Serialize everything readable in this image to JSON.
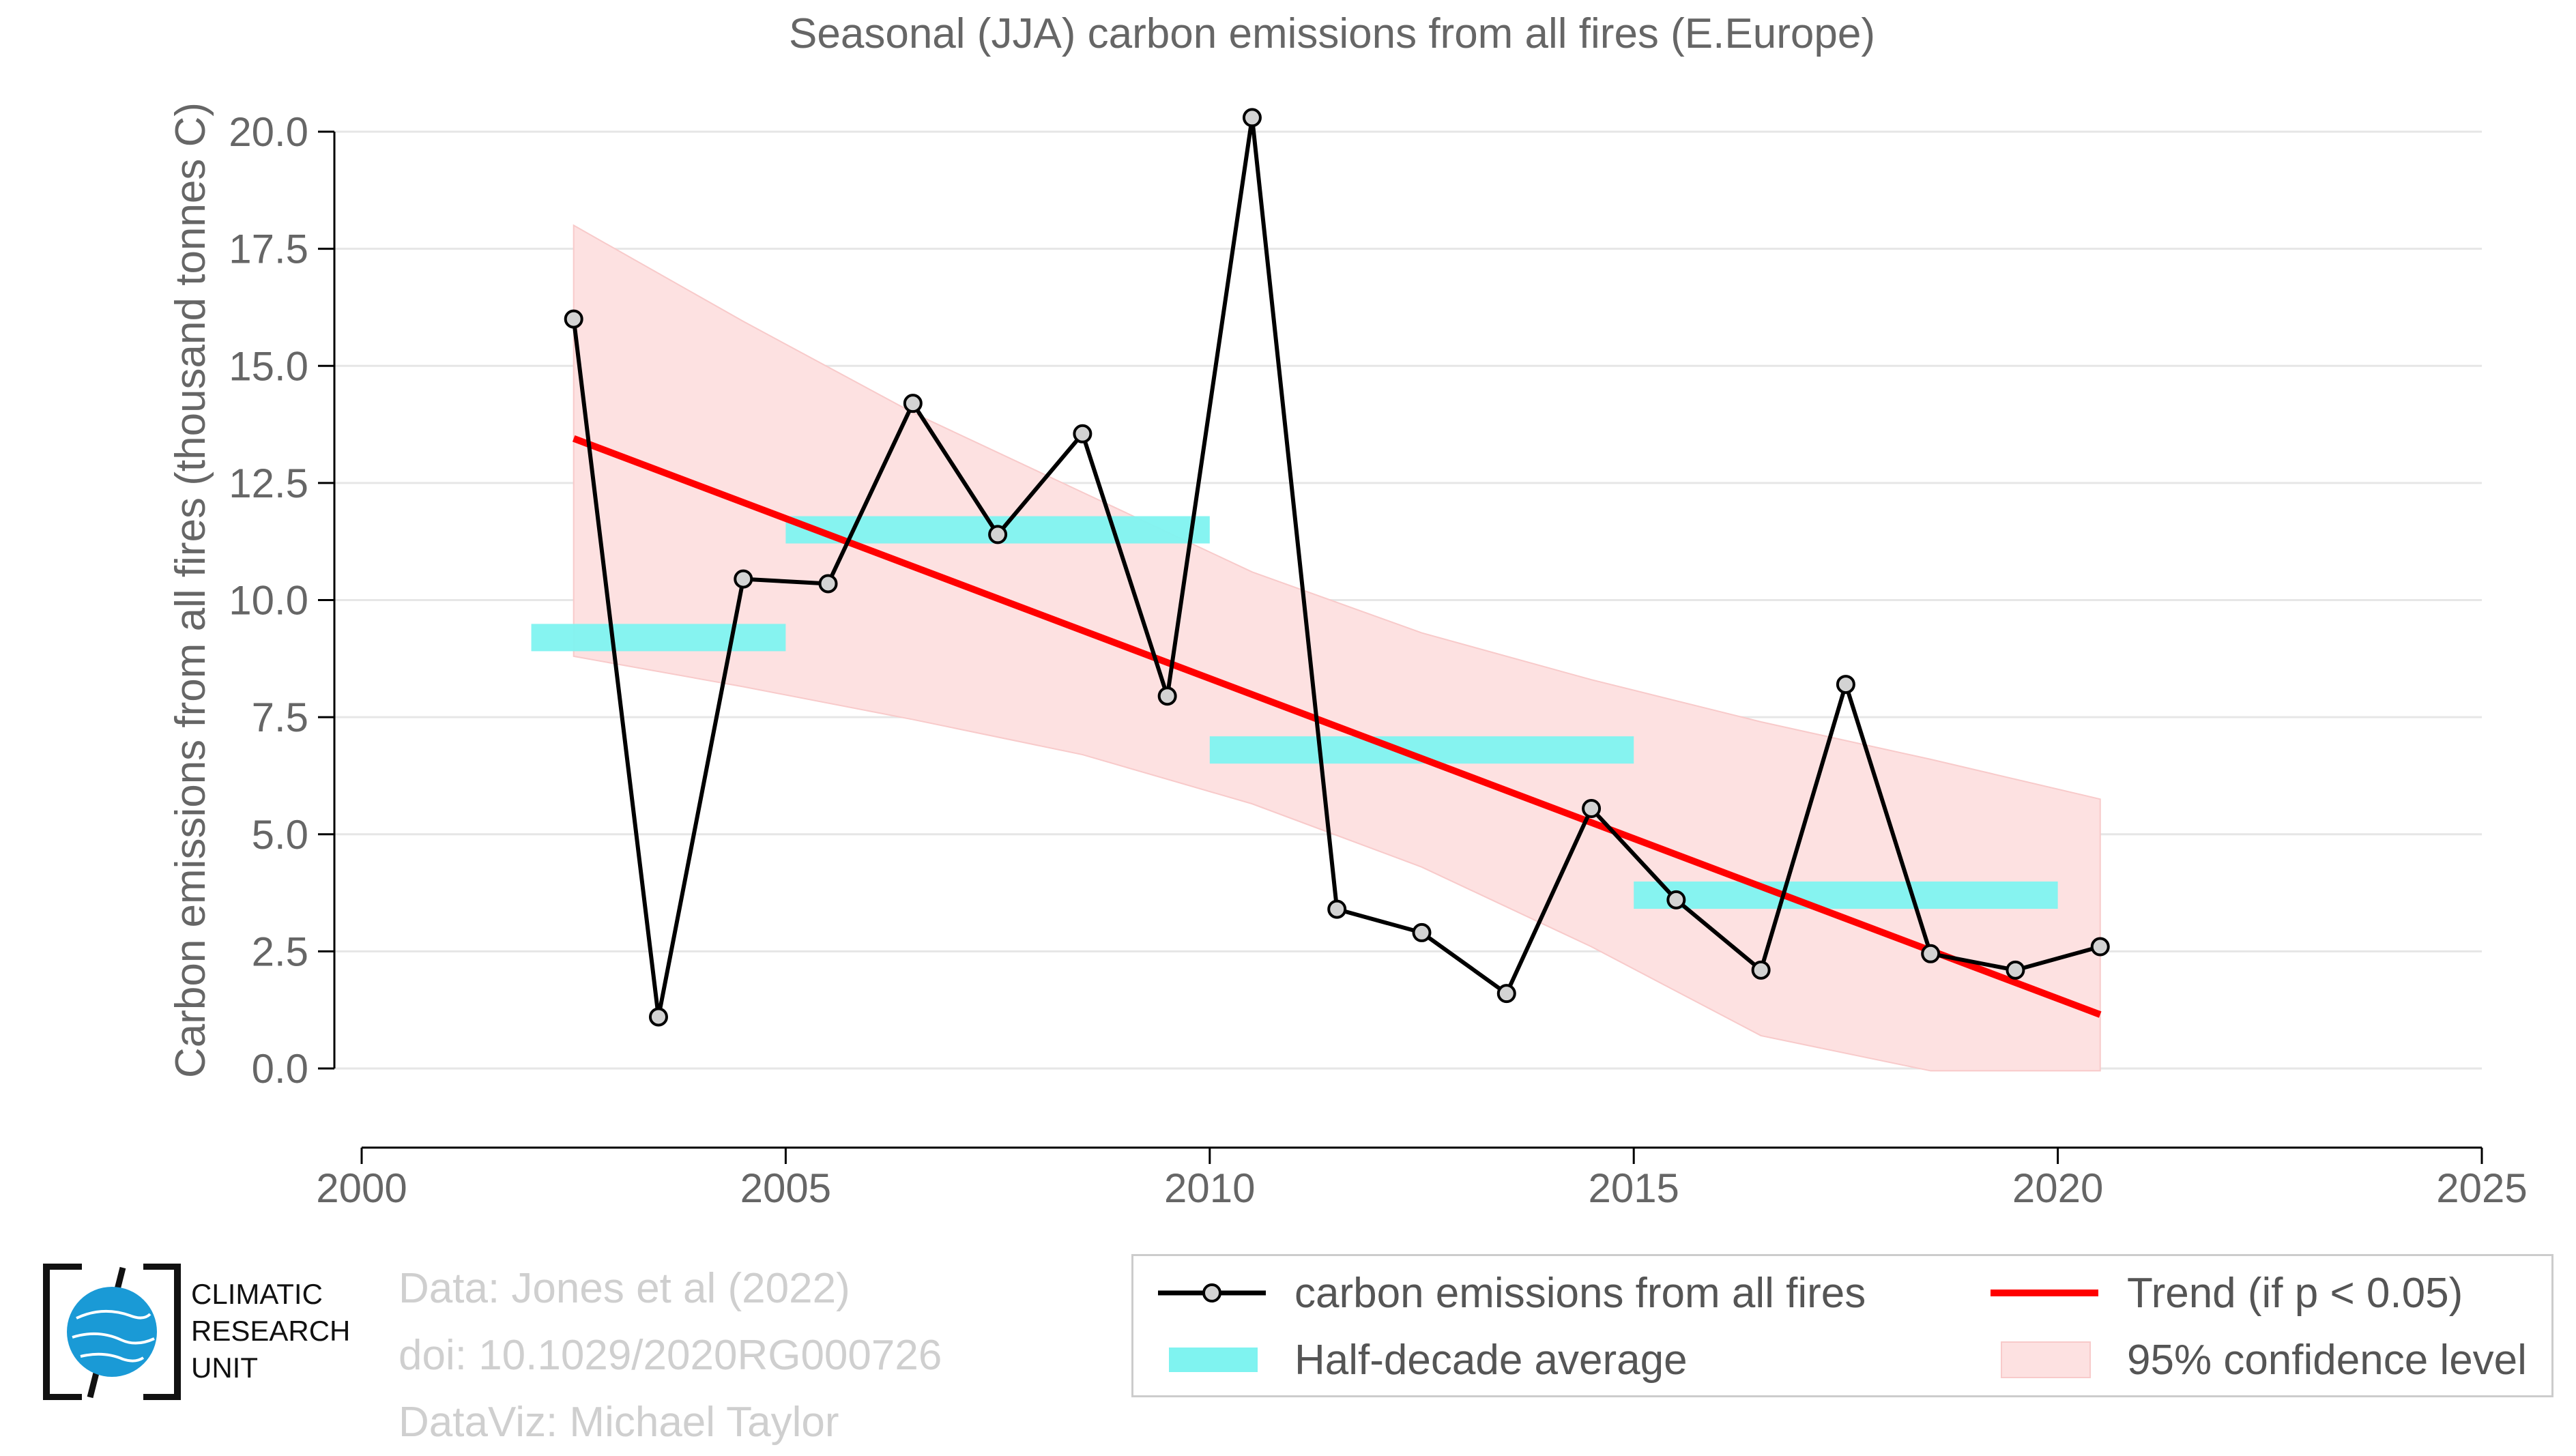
{
  "chart_data": {
    "type": "line",
    "title": "Seasonal (JJA) carbon emissions from all fires (E.Europe)",
    "xlabel": "",
    "ylabel": "Carbon emissions from all fires (thousand tonnes C)",
    "xlim": [
      2000,
      2025
    ],
    "ylim": [
      -1.5,
      21.0
    ],
    "x_ticks": [
      2000,
      2005,
      2010,
      2015,
      2020,
      2025
    ],
    "y_ticks": [
      0.0,
      2.5,
      5.0,
      7.5,
      10.0,
      12.5,
      15.0,
      17.5,
      20.0
    ],
    "grid": "horizontal",
    "series": [
      {
        "name": "carbon emissions from all fires",
        "color": "#000000",
        "x": [
          2002.5,
          2003.5,
          2004.5,
          2005.5,
          2006.5,
          2007.5,
          2008.5,
          2009.5,
          2010.5,
          2011.5,
          2012.5,
          2013.5,
          2014.5,
          2015.5,
          2016.5,
          2017.5,
          2018.5,
          2019.5,
          2020.5
        ],
        "values": [
          16.0,
          1.1,
          10.45,
          10.35,
          14.2,
          11.4,
          13.55,
          7.95,
          20.3,
          3.4,
          2.9,
          1.6,
          5.55,
          3.6,
          2.1,
          8.2,
          2.45,
          2.1,
          2.6
        ]
      }
    ],
    "half_decade_average": {
      "name": "Half-decade average",
      "color": "#7ff3f0",
      "segments": [
        {
          "x0": 2002.0,
          "x1": 2005.0,
          "value": 9.2
        },
        {
          "x0": 2005.0,
          "x1": 2010.0,
          "value": 11.5
        },
        {
          "x0": 2010.0,
          "x1": 2015.0,
          "value": 6.8
        },
        {
          "x0": 2015.0,
          "x1": 2020.0,
          "value": 3.7
        }
      ]
    },
    "trend": {
      "name": "Trend (if p < 0.05)",
      "color": "#ff0000",
      "x": [
        2002.5,
        2020.5
      ],
      "values": [
        13.45,
        1.15
      ]
    },
    "confidence_band": {
      "name": "95% confidence level",
      "color": "#fde1e1",
      "x": [
        2002.5,
        2004.5,
        2006.5,
        2008.5,
        2010.5,
        2012.5,
        2014.5,
        2016.5,
        2018.5,
        2020.5
      ],
      "upper": [
        18.0,
        15.95,
        14.0,
        12.3,
        10.6,
        9.3,
        8.3,
        7.4,
        6.6,
        5.75
      ],
      "lower": [
        8.8,
        8.15,
        7.45,
        6.7,
        5.65,
        4.3,
        2.6,
        0.7,
        -0.05,
        -0.05
      ]
    }
  },
  "legend": {
    "line_label": "carbon emissions from all fires",
    "trend_label": "Trend (if p < 0.05)",
    "half_decade_label": "Half-decade average",
    "ci_label": "95% confidence level"
  },
  "credits": {
    "line1": "Data: Jones et al (2022)",
    "line2": "doi: 10.1029/2020RG000726",
    "line3": "DataViz: Michael Taylor"
  },
  "logo": {
    "line1": "CLIMATIC",
    "line2": "RESEARCH",
    "line3": "UNIT"
  },
  "colors": {
    "axis_text": "#666666",
    "grid": "#e6e6e6",
    "marker_fill": "#d3d3d3"
  }
}
